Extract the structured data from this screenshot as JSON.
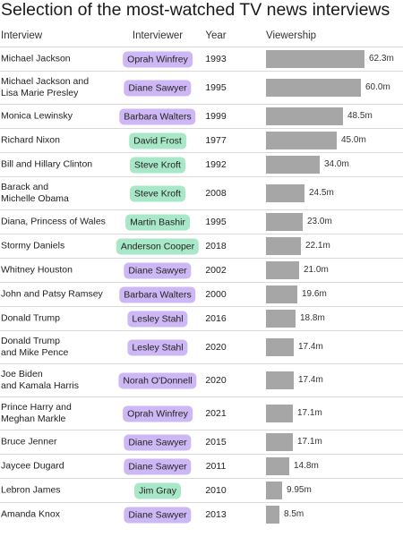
{
  "title": "Selection of the most-watched TV news interviews",
  "headers": {
    "interview": "Interview",
    "interviewer": "Interviewer",
    "year": "Year",
    "viewership": "Viewership"
  },
  "colors": {
    "bar": "#a6a6a6",
    "interviewer_purple": "#cdb8f5",
    "interviewer_green": "#a8e8c8",
    "rule": "#d9d9d9"
  },
  "chart_data": {
    "type": "bar",
    "unit": "m",
    "xlim": [
      0,
      64
    ],
    "rows": [
      {
        "interview": [
          "Michael Jackson"
        ],
        "interviewer": "Oprah Winfrey",
        "tone": "purple",
        "year": "1993",
        "value": 62.3,
        "label": "62.3m"
      },
      {
        "interview": [
          "Michael Jackson and",
          "Lisa Marie Presley"
        ],
        "interviewer": "Diane Sawyer",
        "tone": "purple",
        "year": "1995",
        "value": 60.0,
        "label": "60.0m"
      },
      {
        "interview": [
          "Monica Lewinsky"
        ],
        "interviewer": "Barbara Walters",
        "tone": "purple",
        "year": "1999",
        "value": 48.5,
        "label": "48.5m"
      },
      {
        "interview": [
          "Richard Nixon"
        ],
        "interviewer": "David Frost",
        "tone": "green",
        "year": "1977",
        "value": 45.0,
        "label": "45.0m"
      },
      {
        "interview": [
          "Bill and Hillary Clinton"
        ],
        "interviewer": "Steve Kroft",
        "tone": "green",
        "year": "1992",
        "value": 34.0,
        "label": "34.0m"
      },
      {
        "interview": [
          "Barack and",
          "Michelle Obama"
        ],
        "interviewer": "Steve Kroft",
        "tone": "green",
        "year": "2008",
        "value": 24.5,
        "label": "24.5m"
      },
      {
        "interview": [
          "Diana, Princess of Wales"
        ],
        "interviewer": "Martin Bashir",
        "tone": "green",
        "year": "1995",
        "value": 23.0,
        "label": "23.0m"
      },
      {
        "interview": [
          "Stormy Daniels"
        ],
        "interviewer": "Anderson Cooper",
        "tone": "green",
        "year": "2018",
        "value": 22.1,
        "label": "22.1m"
      },
      {
        "interview": [
          "Whitney Houston"
        ],
        "interviewer": "Diane Sawyer",
        "tone": "purple",
        "year": "2002",
        "value": 21.0,
        "label": "21.0m"
      },
      {
        "interview": [
          "John and Patsy Ramsey"
        ],
        "interviewer": "Barbara Walters",
        "tone": "purple",
        "year": "2000",
        "value": 19.6,
        "label": "19.6m"
      },
      {
        "interview": [
          "Donald Trump"
        ],
        "interviewer": "Lesley Stahl",
        "tone": "purple",
        "year": "2016",
        "value": 18.8,
        "label": "18.8m"
      },
      {
        "interview": [
          "Donald Trump",
          "and Mike Pence"
        ],
        "interviewer": "Lesley Stahl",
        "tone": "purple",
        "year": "2020",
        "value": 17.4,
        "label": "17.4m"
      },
      {
        "interview": [
          "Joe Biden",
          "and Kamala Harris"
        ],
        "interviewer": "Norah O'Donnell",
        "tone": "purple",
        "year": "2020",
        "value": 17.4,
        "label": "17.4m"
      },
      {
        "interview": [
          "Prince Harry and",
          "Meghan Markle"
        ],
        "interviewer": "Oprah Winfrey",
        "tone": "purple",
        "year": "2021",
        "value": 17.1,
        "label": "17.1m"
      },
      {
        "interview": [
          "Bruce Jenner"
        ],
        "interviewer": "Diane Sawyer",
        "tone": "purple",
        "year": "2015",
        "value": 17.1,
        "label": "17.1m"
      },
      {
        "interview": [
          "Jaycee Dugard"
        ],
        "interviewer": "Diane Sawyer",
        "tone": "purple",
        "year": "2011",
        "value": 14.8,
        "label": "14.8m"
      },
      {
        "interview": [
          "Lebron James"
        ],
        "interviewer": "Jim Gray",
        "tone": "green",
        "year": "2010",
        "value": 9.95,
        "label": "9.95m"
      },
      {
        "interview": [
          "Amanda Knox"
        ],
        "interviewer": "Diane Sawyer",
        "tone": "purple",
        "year": "2013",
        "value": 8.5,
        "label": "8.5m"
      }
    ]
  }
}
